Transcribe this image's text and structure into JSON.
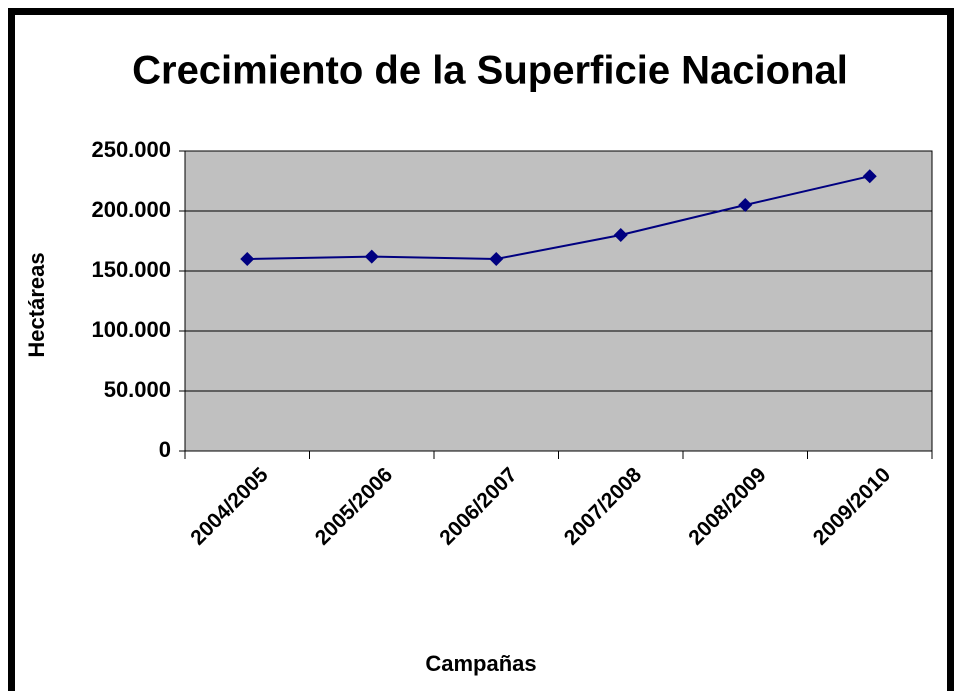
{
  "chart_data": {
    "type": "line",
    "title": "Crecimiento de la Superficie Nacional",
    "x_label": "Campañas",
    "y_label": "Hectáreas",
    "categories": [
      "2004/2005",
      "2005/2006",
      "2006/2007",
      "2007/2008",
      "2008/2009",
      "2009/2010"
    ],
    "series": [
      {
        "name": "Hectáreas",
        "color": "#000080",
        "values": [
          160000,
          162000,
          160000,
          180000,
          205000,
          229000
        ]
      }
    ],
    "ylim": [
      0,
      250000
    ],
    "yticks": [
      0,
      {
        "value": 50000,
        "label": "50.000"
      },
      {
        "value": 100000,
        "label": "100.000"
      },
      {
        "value": 150000,
        "label": "150.000"
      },
      {
        "value": 200000,
        "label": "200.000"
      },
      {
        "value": 250000,
        "label": "250.000"
      }
    ],
    "grid": true,
    "plot_background": "#c0c0c0"
  }
}
